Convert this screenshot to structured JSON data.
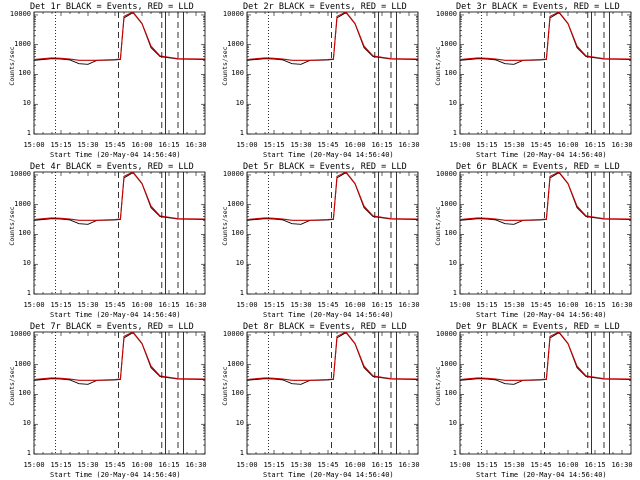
{
  "figure": {
    "xlabel": "Start Time (20-May-04 14:56:40)",
    "ylabel": "Counts/sec",
    "x_ticks": [
      "15:00",
      "15:15",
      "15:30",
      "15:45",
      "16:00",
      "16:15",
      "16:30"
    ],
    "y_ticks": [
      "1",
      "10",
      "100",
      "1000",
      "10000"
    ],
    "colors": {
      "events": "#000000",
      "lld": "#cc0000",
      "axis": "#000000"
    }
  },
  "chart_data": [
    {
      "type": "line",
      "title": "Det 1r BLACK = Events, RED = LLD",
      "xlim": [
        0,
        95
      ],
      "ylim_log10": [
        0,
        4.1
      ],
      "series": [
        {
          "name": "Events",
          "values": [
            300,
            320,
            340,
            330,
            310,
            230,
            220,
            300,
            300,
            310,
            320,
            8000,
            12000,
            5000,
            800,
            400,
            330,
            320
          ]
        },
        {
          "name": "LLD",
          "values": [
            320,
            340,
            360,
            350,
            330,
            300,
            300,
            300,
            310,
            320,
            330,
            9000,
            13000,
            5200,
            900,
            420,
            340,
            330
          ]
        }
      ]
    },
    {
      "type": "line",
      "title": "Det 2r BLACK = Events, RED = LLD",
      "xlim": [
        0,
        95
      ],
      "ylim_log10": [
        0,
        4.1
      ],
      "series": [
        {
          "name": "Events",
          "values": [
            300,
            320,
            340,
            330,
            310,
            230,
            220,
            300,
            300,
            310,
            320,
            8000,
            12000,
            5000,
            800,
            400,
            330,
            320
          ]
        },
        {
          "name": "LLD",
          "values": [
            320,
            340,
            360,
            350,
            330,
            300,
            300,
            300,
            310,
            320,
            330,
            9000,
            13000,
            5200,
            900,
            420,
            340,
            330
          ]
        }
      ]
    },
    {
      "type": "line",
      "title": "Det 3r BLACK = Events, RED = LLD",
      "xlim": [
        0,
        95
      ],
      "ylim_log10": [
        0,
        4.1
      ],
      "series": [
        {
          "name": "Events",
          "values": [
            300,
            320,
            340,
            330,
            310,
            230,
            220,
            300,
            300,
            310,
            320,
            8000,
            12000,
            5000,
            800,
            400,
            330,
            320
          ]
        },
        {
          "name": "LLD",
          "values": [
            320,
            340,
            360,
            350,
            330,
            300,
            300,
            300,
            310,
            320,
            330,
            9000,
            13000,
            5200,
            900,
            420,
            340,
            330
          ]
        }
      ]
    },
    {
      "type": "line",
      "title": "Det 4r BLACK = Events, RED = LLD",
      "xlim": [
        0,
        95
      ],
      "ylim_log10": [
        0,
        4.1
      ],
      "series": [
        {
          "name": "Events",
          "values": [
            300,
            320,
            340,
            330,
            310,
            230,
            220,
            300,
            300,
            310,
            320,
            8000,
            12000,
            5000,
            800,
            400,
            330,
            320
          ]
        },
        {
          "name": "LLD",
          "values": [
            320,
            340,
            360,
            350,
            330,
            300,
            300,
            300,
            310,
            320,
            330,
            9000,
            13000,
            5200,
            900,
            420,
            340,
            330
          ]
        }
      ]
    },
    {
      "type": "line",
      "title": "Det 5r BLACK = Events, RED = LLD",
      "xlim": [
        0,
        95
      ],
      "ylim_log10": [
        0,
        4.1
      ],
      "series": [
        {
          "name": "Events",
          "values": [
            300,
            320,
            340,
            330,
            310,
            230,
            220,
            300,
            300,
            310,
            320,
            8000,
            12000,
            5000,
            800,
            400,
            330,
            320
          ]
        },
        {
          "name": "LLD",
          "values": [
            320,
            340,
            360,
            350,
            330,
            300,
            300,
            300,
            310,
            320,
            330,
            9000,
            13000,
            5200,
            900,
            420,
            340,
            330
          ]
        }
      ]
    },
    {
      "type": "line",
      "title": "Det 6r BLACK = Events, RED = LLD",
      "xlim": [
        0,
        95
      ],
      "ylim_log10": [
        0,
        4.1
      ],
      "series": [
        {
          "name": "Events",
          "values": [
            300,
            320,
            340,
            330,
            310,
            230,
            220,
            300,
            300,
            310,
            320,
            8000,
            12000,
            5000,
            800,
            400,
            330,
            320
          ]
        },
        {
          "name": "LLD",
          "values": [
            320,
            340,
            360,
            350,
            330,
            300,
            300,
            300,
            310,
            320,
            330,
            9000,
            13000,
            5200,
            900,
            420,
            340,
            330
          ]
        }
      ]
    },
    {
      "type": "line",
      "title": "Det 7r BLACK = Events, RED = LLD",
      "xlim": [
        0,
        95
      ],
      "ylim_log10": [
        0,
        4.1
      ],
      "series": [
        {
          "name": "Events",
          "values": [
            300,
            320,
            340,
            330,
            310,
            230,
            220,
            300,
            300,
            310,
            320,
            8000,
            12000,
            5000,
            800,
            400,
            330,
            320
          ]
        },
        {
          "name": "LLD",
          "values": [
            320,
            340,
            360,
            350,
            330,
            300,
            300,
            300,
            310,
            320,
            330,
            9000,
            13000,
            5200,
            900,
            420,
            340,
            330
          ]
        }
      ]
    },
    {
      "type": "line",
      "title": "Det 8r BLACK = Events, RED = LLD",
      "xlim": [
        0,
        95
      ],
      "ylim_log10": [
        0,
        4.1
      ],
      "series": [
        {
          "name": "Events",
          "values": [
            300,
            320,
            340,
            330,
            310,
            230,
            220,
            300,
            300,
            310,
            320,
            8000,
            12000,
            5000,
            800,
            400,
            330,
            320
          ]
        },
        {
          "name": "LLD",
          "values": [
            320,
            340,
            360,
            350,
            330,
            300,
            300,
            300,
            310,
            320,
            330,
            9000,
            13000,
            5200,
            900,
            420,
            340,
            330
          ]
        }
      ]
    },
    {
      "type": "line",
      "title": "Det 9r BLACK = Events, RED = LLD",
      "xlim": [
        0,
        95
      ],
      "ylim_log10": [
        0,
        4.1
      ],
      "series": [
        {
          "name": "Events",
          "values": [
            300,
            320,
            340,
            330,
            310,
            230,
            220,
            300,
            300,
            310,
            320,
            8000,
            12000,
            5000,
            800,
            400,
            330,
            320
          ]
        },
        {
          "name": "LLD",
          "values": [
            320,
            340,
            360,
            350,
            330,
            300,
            300,
            300,
            310,
            320,
            330,
            9000,
            13000,
            5200,
            900,
            420,
            340,
            330
          ]
        }
      ]
    }
  ],
  "x_minutes": [
    0,
    5,
    10,
    15,
    20,
    25,
    30,
    35,
    40,
    45,
    48,
    50,
    55,
    60,
    65,
    70,
    80,
    95
  ],
  "markers": {
    "dotted": [
      0,
      12
    ],
    "dashed": [
      47,
      71,
      80
    ],
    "solid": [
      73,
      83
    ]
  }
}
